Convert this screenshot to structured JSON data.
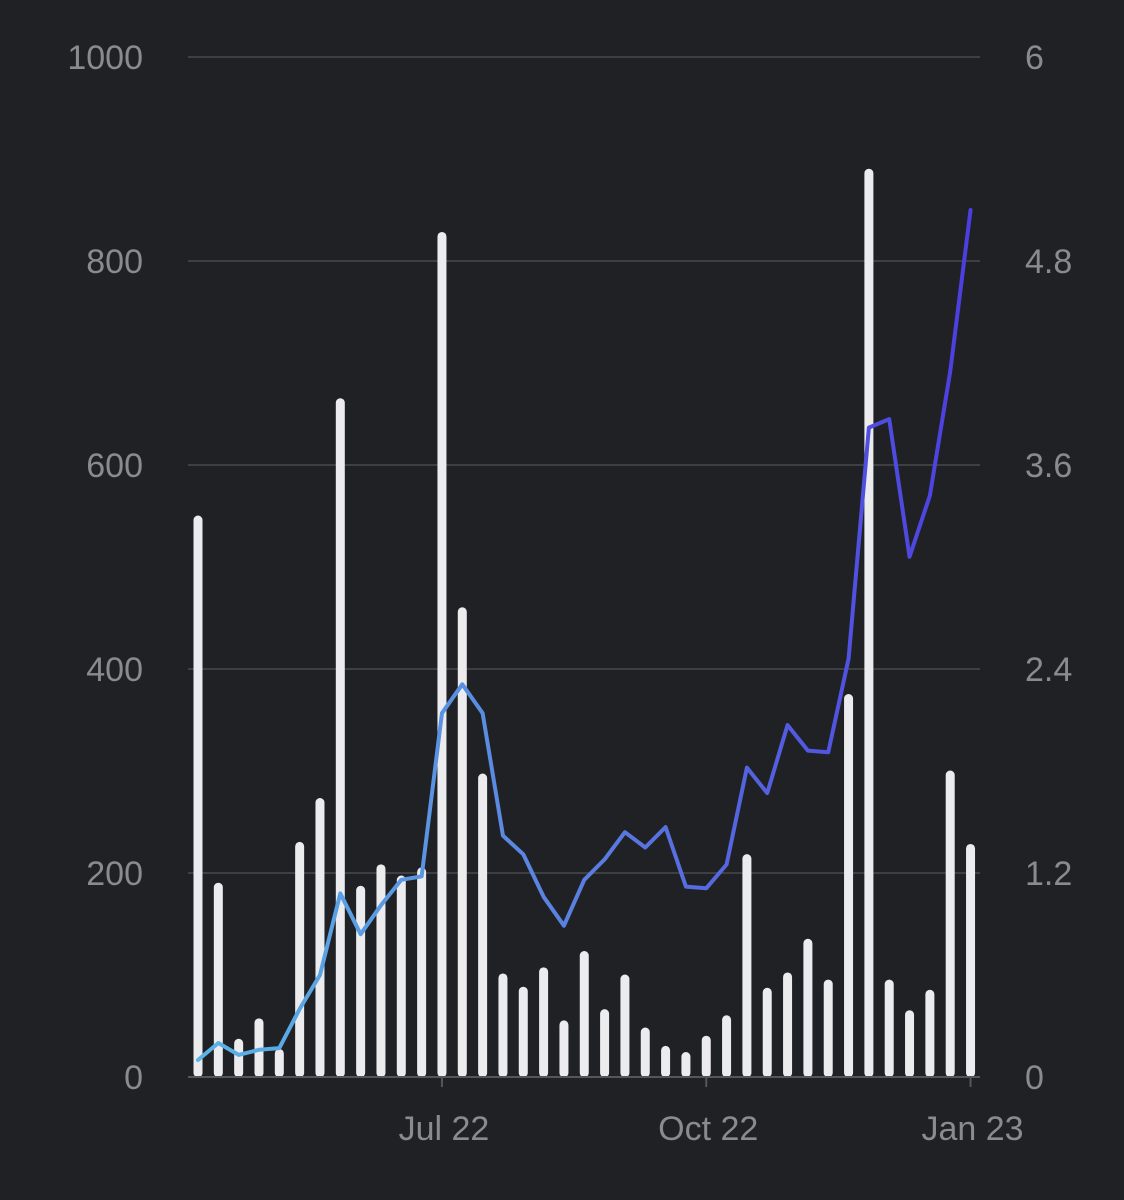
{
  "chart_data": {
    "type": "bar+line",
    "title": "",
    "xlabel": "",
    "ylabel": "",
    "y2label": "",
    "grid": true,
    "legend": "none",
    "ylim": [
      0,
      1000
    ],
    "y2lim": [
      0,
      6
    ],
    "yticks": [
      "0",
      "200",
      "400",
      "600",
      "800",
      "1000"
    ],
    "y2ticks": [
      "0",
      "1.2",
      "2.4",
      "3.6",
      "4.8",
      "6"
    ],
    "xticks": [
      {
        "label": "Jul 22",
        "index": 12
      },
      {
        "label": "Oct 22",
        "index": 25
      },
      {
        "label": "Jan 23",
        "index": 38
      }
    ],
    "line_gradient": [
      "#5ab4e6",
      "#5a7ee0",
      "#4c3ee0"
    ],
    "series": [
      {
        "kind": "bar",
        "axis": "left",
        "color": "#ececee",
        "values": [
          550,
          190,
          37,
          57,
          27,
          230,
          273,
          665,
          187,
          208,
          197,
          205,
          828,
          460,
          297,
          101,
          88,
          107,
          55,
          123,
          66,
          100,
          48,
          30,
          24,
          40,
          60,
          218,
          87,
          102,
          135,
          95,
          375,
          890,
          95,
          65,
          85,
          300,
          228
        ]
      },
      {
        "kind": "line",
        "axis": "right",
        "values": [
          0.1,
          0.2,
          0.13,
          0.16,
          0.17,
          0.4,
          0.6,
          1.08,
          0.84,
          1.01,
          1.16,
          1.18,
          2.14,
          2.31,
          2.14,
          1.42,
          1.31,
          1.06,
          0.89,
          1.16,
          1.28,
          1.44,
          1.35,
          1.47,
          1.12,
          1.11,
          1.25,
          1.82,
          1.67,
          2.07,
          1.92,
          1.91,
          2.46,
          3.82,
          3.87,
          3.06,
          3.42,
          4.15,
          5.1
        ]
      }
    ]
  }
}
